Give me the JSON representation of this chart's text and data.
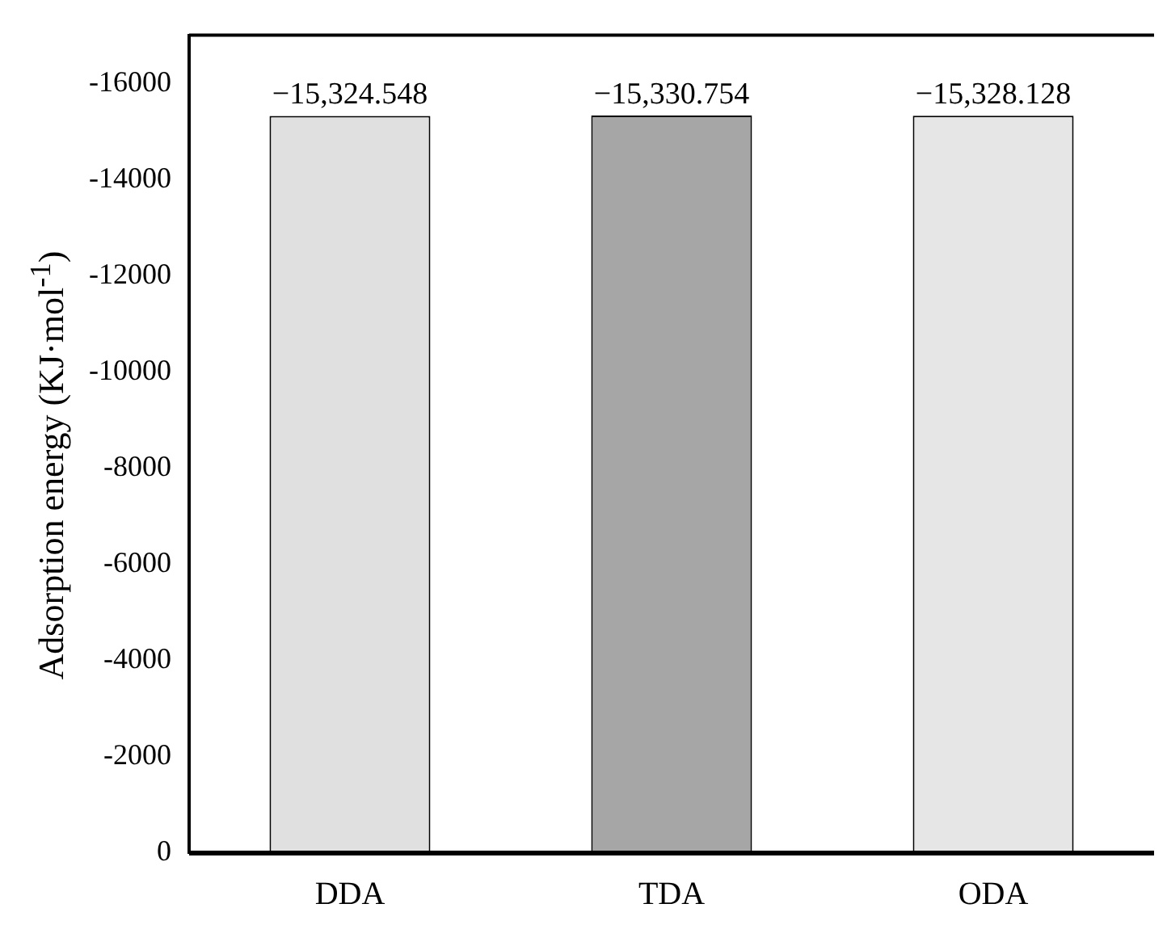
{
  "chart_data": {
    "type": "bar",
    "ylabel": "Adsorption energy (KJ·mol$^{-1}$)",
    "categories": [
      "DDA",
      "TDA",
      "ODA"
    ],
    "values": [
      -15324.548,
      -15330.754,
      -15328.128
    ],
    "colors": [
      "#e0e0e0",
      "#a6a6a6",
      "#e6e6e6"
    ],
    "value_labels": [
      "−15,324.548",
      "−15,330.754",
      "−15,328.128"
    ],
    "ylim": [
      0,
      -17000
    ],
    "yticks": [
      0,
      -2000,
      -4000,
      -6000,
      -8000,
      -10000,
      -12000,
      -14000,
      -16000
    ],
    "grid": false,
    "legend": false
  }
}
